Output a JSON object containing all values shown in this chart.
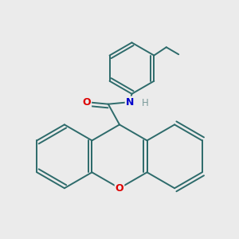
{
  "background_color": "#ebebeb",
  "bond_color": "#2d6b6b",
  "bond_width": 1.4,
  "atom_colors": {
    "O_xanthene": "#dd0000",
    "O_carbonyl": "#dd0000",
    "N": "#0000cc",
    "H": "#7a9a9a",
    "C": "#2d6b6b"
  },
  "font_size_atoms": 9,
  "font_size_H": 8.5
}
